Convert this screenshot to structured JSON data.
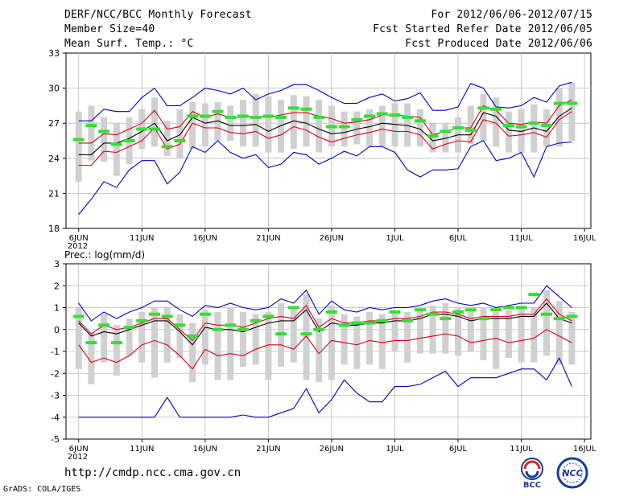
{
  "header": {
    "title": "DERF/NCC/BCC Monthly Forecast",
    "member": "Member Size=40",
    "variable": "Mean Surf. Temp.: °C",
    "period": "For 2012/06/06-2012/07/15",
    "started": "Fcst Started Refer Date 2012/06/05",
    "produced": "Fcst Produced Date 2012/06/06"
  },
  "footer": {
    "url": "http://cmdp.ncc.cma.gov.cn",
    "credit": "GrADS: COLA/IGES"
  },
  "logos": {
    "bcc": "BCC",
    "ncc": "NCC"
  },
  "colors": {
    "max": "#0000cc",
    "pct": "#e0001a",
    "mean": "#000000",
    "obs": "#33e033",
    "spread": "#d0d0d0"
  },
  "chart_data": [
    {
      "type": "line",
      "title": "Mean Surf. Temp.: °C",
      "x": [
        1,
        2,
        3,
        4,
        5,
        6,
        7,
        8,
        9,
        10,
        11,
        12,
        13,
        14,
        15,
        16,
        17,
        18,
        19,
        20,
        21,
        22,
        23,
        24,
        25,
        26,
        27,
        28,
        29,
        30,
        31,
        32,
        33,
        34,
        35,
        36,
        37,
        38,
        39,
        40
      ],
      "xticks": [
        1,
        6,
        11,
        16,
        21,
        26,
        31,
        36,
        41
      ],
      "xtick_labels": [
        "6JUN",
        "11JUN",
        "16JUN",
        "21JUN",
        "26JUN",
        "1JUL",
        "6JUL",
        "11JUL",
        "16JUL"
      ],
      "xyear": "2012",
      "ylim": [
        18,
        33
      ],
      "yticks": [
        18,
        21,
        24,
        27,
        30,
        33
      ],
      "series": [
        {
          "name": "max",
          "values": [
            27.2,
            27.2,
            28.2,
            28.0,
            28.0,
            29.2,
            30.0,
            28.5,
            28.5,
            29.2,
            30.0,
            29.8,
            29.5,
            30.0,
            29.0,
            29.5,
            29.8,
            30.3,
            30.3,
            29.8,
            29.2,
            28.7,
            28.7,
            29.2,
            29.5,
            28.9,
            29.1,
            29.6,
            28.1,
            28.1,
            28.4,
            30.4,
            30.0,
            28.4,
            28.3,
            28.5,
            29.2,
            28.8,
            30.2,
            30.5
          ]
        },
        {
          "name": "p_upper",
          "values": [
            25.3,
            25.3,
            26.1,
            26.0,
            26.5,
            27.0,
            28.1,
            26.5,
            26.7,
            28.0,
            27.5,
            27.8,
            27.5,
            27.5,
            27.6,
            27.5,
            27.7,
            27.9,
            27.9,
            27.6,
            27.4,
            27.0,
            27.1,
            27.3,
            27.7,
            27.7,
            27.6,
            27.5,
            26.0,
            26.3,
            26.6,
            26.6,
            28.5,
            28.1,
            27.0,
            26.9,
            27.1,
            27.0,
            28.5,
            29.0
          ]
        },
        {
          "name": "mean",
          "values": [
            24.3,
            24.3,
            25.3,
            25.3,
            25.7,
            26.3,
            27.0,
            25.5,
            26.0,
            27.5,
            27.0,
            27.2,
            26.8,
            26.8,
            26.9,
            26.3,
            26.8,
            27.2,
            27.0,
            26.5,
            26.1,
            26.2,
            26.5,
            26.7,
            27.0,
            26.9,
            26.8,
            26.5,
            25.5,
            25.7,
            26.0,
            26.0,
            27.9,
            27.6,
            26.4,
            26.3,
            26.6,
            26.3,
            27.6,
            28.3
          ]
        },
        {
          "name": "p_lower",
          "values": [
            23.4,
            23.4,
            24.6,
            24.5,
            25.0,
            25.5,
            26.6,
            24.8,
            25.2,
            27.0,
            26.6,
            26.6,
            26.2,
            26.1,
            26.3,
            25.7,
            26.0,
            26.7,
            26.4,
            25.8,
            25.4,
            25.7,
            26.0,
            26.2,
            26.5,
            26.3,
            26.3,
            26.0,
            24.8,
            25.2,
            25.5,
            25.4,
            27.3,
            27.0,
            25.9,
            26.0,
            26.2,
            25.8,
            27.3,
            28.0
          ]
        },
        {
          "name": "min",
          "values": [
            19.2,
            20.5,
            22.0,
            21.5,
            23.0,
            23.8,
            23.8,
            21.8,
            22.8,
            25.0,
            24.5,
            25.5,
            24.5,
            24.0,
            24.3,
            23.2,
            23.5,
            24.5,
            24.3,
            23.5,
            24.0,
            24.6,
            24.2,
            25.0,
            25.0,
            24.5,
            23.0,
            22.4,
            23.0,
            23.0,
            23.1,
            25.0,
            25.5,
            23.8,
            24.0,
            24.5,
            22.4,
            25.0,
            25.3,
            25.4
          ]
        }
      ],
      "spread": {
        "low": [
          22.0,
          23.8,
          23.7,
          22.5,
          23.5,
          24.8,
          25.0,
          24.2,
          24.0,
          24.8,
          25.0,
          25.5,
          25.5,
          25.0,
          25.0,
          24.5,
          24.5,
          24.8,
          25.0,
          24.5,
          25.0,
          25.0,
          25.2,
          25.0,
          25.0,
          25.0,
          25.0,
          25.0,
          24.5,
          24.5,
          24.5,
          25.2,
          25.5,
          25.0,
          24.5,
          24.5,
          24.5,
          25.0,
          25.0,
          25.5
        ],
        "high": [
          28.0,
          28.5,
          27.5,
          27.0,
          27.5,
          28.2,
          29.2,
          27.2,
          28.2,
          28.8,
          28.7,
          28.8,
          28.5,
          29.0,
          29.5,
          29.3,
          29.0,
          29.4,
          29.3,
          29.0,
          28.5,
          28.0,
          28.0,
          28.2,
          28.5,
          28.7,
          28.7,
          28.2,
          27.0,
          27.0,
          27.5,
          28.5,
          29.5,
          29.2,
          28.0,
          28.2,
          28.6,
          28.2,
          30.0,
          30.5
        ]
      },
      "obs": [
        25.6,
        26.8,
        26.3,
        25.2,
        25.5,
        26.5,
        26.5,
        25.0,
        25.5,
        27.6,
        27.6,
        28.0,
        27.5,
        27.6,
        27.5,
        27.6,
        27.5,
        28.3,
        28.2,
        27.5,
        26.7,
        26.7,
        27.3,
        27.6,
        27.8,
        27.7,
        27.5,
        27.2,
        25.9,
        26.3,
        26.6,
        26.4,
        28.3,
        28.2,
        26.8,
        26.7,
        27.0,
        26.8,
        28.7,
        28.7
      ]
    },
    {
      "type": "line",
      "title": "Prec.: log(mm/d)",
      "x": [
        1,
        2,
        3,
        4,
        5,
        6,
        7,
        8,
        9,
        10,
        11,
        12,
        13,
        14,
        15,
        16,
        17,
        18,
        19,
        20,
        21,
        22,
        23,
        24,
        25,
        26,
        27,
        28,
        29,
        30,
        31,
        32,
        33,
        34,
        35,
        36,
        37,
        38,
        39,
        40
      ],
      "xticks": [
        1,
        6,
        11,
        16,
        21,
        26,
        31,
        36,
        41
      ],
      "xtick_labels": [
        "6JUN",
        "11JUN",
        "16JUN",
        "21JUN",
        "26JUN",
        "1JUL",
        "6JUL",
        "11JUL",
        "16JUL"
      ],
      "xyear": "2012",
      "ylim": [
        -5,
        3
      ],
      "yticks": [
        -5,
        -4,
        -3,
        -2,
        -1,
        0,
        1,
        2,
        3
      ],
      "series": [
        {
          "name": "max",
          "values": [
            1.2,
            0.4,
            0.8,
            0.5,
            0.8,
            1.0,
            1.3,
            1.3,
            0.9,
            0.6,
            1.1,
            1.0,
            1.2,
            1.0,
            0.9,
            1.0,
            1.4,
            1.2,
            1.8,
            0.7,
            1.3,
            0.9,
            0.8,
            1.0,
            0.9,
            1.0,
            1.0,
            1.1,
            1.3,
            1.4,
            1.2,
            1.1,
            1.2,
            1.0,
            1.1,
            1.2,
            1.2,
            2.0,
            1.5,
            1.0
          ]
        },
        {
          "name": "p_upper",
          "values": [
            0.4,
            -0.2,
            0.2,
            0.0,
            0.1,
            0.3,
            0.5,
            0.5,
            0.0,
            -0.5,
            0.3,
            0.2,
            0.2,
            0.1,
            0.3,
            0.5,
            0.6,
            0.5,
            1.1,
            0.1,
            0.5,
            0.3,
            0.3,
            0.4,
            0.4,
            0.5,
            0.5,
            0.6,
            0.8,
            0.8,
            0.7,
            0.5,
            0.6,
            0.6,
            0.6,
            0.7,
            0.7,
            1.4,
            0.7,
            0.4
          ]
        },
        {
          "name": "mean",
          "values": [
            0.3,
            -0.3,
            -0.1,
            -0.2,
            0.0,
            0.2,
            0.4,
            0.4,
            -0.1,
            -0.7,
            0.1,
            0.0,
            0.0,
            -0.1,
            0.1,
            0.3,
            0.4,
            0.4,
            0.9,
            -0.1,
            0.3,
            0.2,
            0.2,
            0.3,
            0.3,
            0.4,
            0.4,
            0.5,
            0.7,
            0.7,
            0.6,
            0.4,
            0.5,
            0.5,
            0.5,
            0.6,
            0.6,
            1.2,
            0.5,
            0.3
          ]
        },
        {
          "name": "p_lower",
          "values": [
            -0.7,
            -1.5,
            -1.3,
            -1.5,
            -1.2,
            -0.7,
            -0.5,
            -0.7,
            -1.2,
            -1.8,
            -0.9,
            -1.2,
            -1.1,
            -1.2,
            -0.9,
            -0.7,
            -0.7,
            -0.9,
            -0.3,
            -1.1,
            -0.5,
            -0.6,
            -0.7,
            -0.5,
            -0.6,
            -0.5,
            -0.5,
            -0.4,
            -0.3,
            -0.2,
            -0.3,
            -0.6,
            -0.5,
            -0.4,
            -0.6,
            -0.5,
            -0.4,
            0.0,
            -0.3,
            -0.6
          ]
        },
        {
          "name": "min",
          "values": [
            -4.0,
            -4.0,
            -4.0,
            -4.0,
            -4.0,
            -4.0,
            -4.0,
            -3.1,
            -4.0,
            -4.0,
            -4.0,
            -4.0,
            -4.0,
            -3.9,
            -4.0,
            -4.0,
            -3.8,
            -3.6,
            -2.7,
            -3.8,
            -3.2,
            -2.3,
            -2.9,
            -3.3,
            -3.3,
            -2.6,
            -2.6,
            -2.5,
            -2.2,
            -1.9,
            -2.6,
            -2.2,
            -2.2,
            -2.2,
            -2.0,
            -1.8,
            -1.8,
            -2.3,
            -1.3,
            -2.6
          ]
        }
      ],
      "spread": {
        "low": [
          -1.8,
          -2.5,
          -1.5,
          -2.1,
          -1.2,
          -1.5,
          -2.2,
          -1.5,
          -1.3,
          -2.4,
          -1.6,
          -2.3,
          -2.3,
          -1.7,
          -1.6,
          -2.3,
          -1.7,
          -1.5,
          -2.3,
          -2.4,
          -2.3,
          -1.6,
          -1.8,
          -1.6,
          -1.8,
          -1.0,
          -1.5,
          -1.1,
          -1.1,
          -1.1,
          -1.2,
          -1.0,
          -1.4,
          -1.8,
          -1.3,
          -1.5,
          -1.5,
          -1.2,
          -1.6,
          -1.6
        ],
        "high": [
          1.0,
          -0.1,
          0.7,
          0.2,
          0.5,
          0.8,
          1.0,
          1.0,
          0.7,
          0.3,
          0.9,
          0.8,
          1.0,
          0.8,
          0.7,
          0.8,
          1.2,
          1.0,
          1.6,
          0.5,
          1.1,
          0.7,
          0.6,
          0.8,
          0.7,
          0.8,
          0.8,
          0.9,
          1.1,
          1.2,
          1.0,
          0.9,
          1.0,
          0.8,
          0.9,
          1.0,
          1.0,
          1.8,
          1.3,
          0.8
        ]
      },
      "obs": [
        0.6,
        -0.6,
        0.2,
        -0.6,
        0.1,
        0.4,
        0.7,
        0.6,
        0.2,
        -0.3,
        0.7,
        0.0,
        0.2,
        0.0,
        0.4,
        0.6,
        -0.2,
        1.0,
        -0.2,
        0.0,
        0.8,
        0.2,
        0.3,
        0.3,
        0.4,
        0.8,
        0.4,
        0.9,
        0.7,
        0.5,
        0.8,
        0.9,
        0.5,
        0.9,
        1.0,
        1.0,
        1.6,
        0.7,
        0.5,
        0.6
      ]
    }
  ]
}
